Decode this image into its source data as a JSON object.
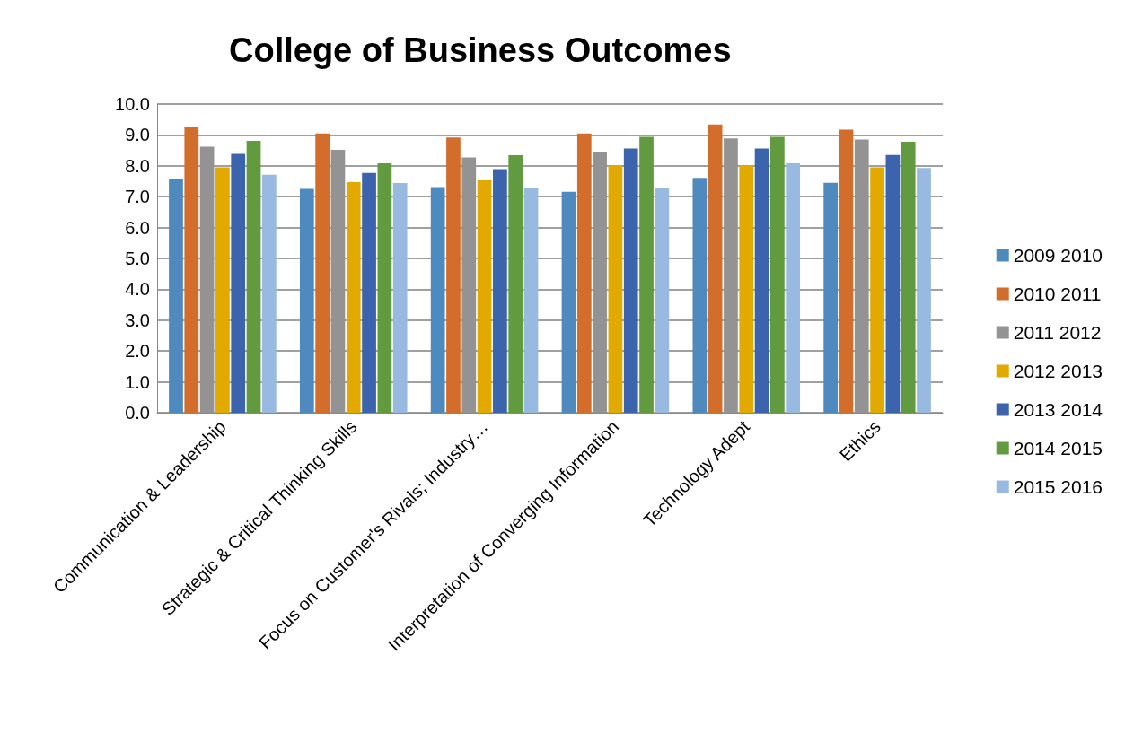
{
  "chart_data": {
    "type": "bar",
    "title": "College of Business Outcomes",
    "categories": [
      "Communication & Leadership",
      "Strategic & Critical Thinking Skills",
      "Focus on Customer's Rivals; Industry…",
      "Interpretation of Converging Information",
      "Technology Adept",
      "Ethics"
    ],
    "series": [
      {
        "name": "2009 2010",
        "color": "#4f8abf",
        "values": [
          7.59,
          7.25,
          7.31,
          7.16,
          7.61,
          7.45
        ]
      },
      {
        "name": "2010 2011",
        "color": "#d36d2b",
        "values": [
          9.26,
          9.05,
          8.92,
          9.05,
          9.34,
          9.17
        ]
      },
      {
        "name": "2011 2012",
        "color": "#939393",
        "values": [
          8.62,
          8.52,
          8.27,
          8.46,
          8.89,
          8.85
        ]
      },
      {
        "name": "2012 2013",
        "color": "#e2a900",
        "values": [
          7.95,
          7.47,
          7.53,
          8.01,
          8.01,
          7.95
        ]
      },
      {
        "name": "2013 2014",
        "color": "#3c64ad",
        "values": [
          8.39,
          7.77,
          7.89,
          8.56,
          8.56,
          8.35
        ]
      },
      {
        "name": "2014 2015",
        "color": "#619a3f",
        "values": [
          8.81,
          8.08,
          8.34,
          8.94,
          8.94,
          8.78
        ]
      },
      {
        "name": "2015 2016",
        "color": "#98bae0",
        "values": [
          7.71,
          7.44,
          7.29,
          7.3,
          8.08,
          7.93
        ]
      }
    ],
    "ylim": [
      0,
      10
    ],
    "yticks": [
      {
        "value": 0,
        "label": "0.0"
      },
      {
        "value": 1,
        "label": "1.0"
      },
      {
        "value": 2,
        "label": "2.0"
      },
      {
        "value": 3,
        "label": "3.0"
      },
      {
        "value": 4,
        "label": "4.0"
      },
      {
        "value": 5,
        "label": "5.0"
      },
      {
        "value": 6,
        "label": "6.0"
      },
      {
        "value": 7,
        "label": "7.0"
      },
      {
        "value": 8,
        "label": "8.0"
      },
      {
        "value": 9,
        "label": "9.0"
      },
      {
        "value": 10,
        "label": "10.0"
      }
    ],
    "grid": "y",
    "legend": "right"
  }
}
